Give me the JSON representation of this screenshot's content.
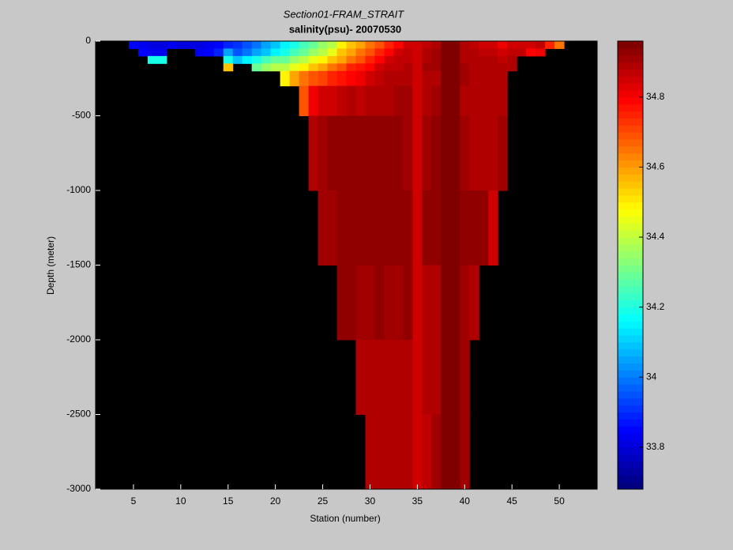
{
  "chart_data": {
    "type": "heatmap",
    "title": "Section01-FRAM_STRAIT",
    "subtitle": "salinity(psu)- 20070530",
    "x_label": "Station (number)",
    "y_label": "Depth (meter)",
    "x": [
      5,
      6,
      7,
      8,
      9,
      10,
      11,
      12,
      13,
      14,
      15,
      16,
      17,
      18,
      19,
      20,
      21,
      22,
      23,
      24,
      25,
      26,
      27,
      28,
      29,
      30,
      31,
      32,
      33,
      34,
      35,
      36,
      37,
      38,
      39,
      40,
      41,
      42,
      43,
      44,
      45,
      46,
      47,
      48,
      49,
      50
    ],
    "y_edges": [
      0,
      -50,
      -100,
      -150,
      -200,
      -300,
      -500,
      -1000,
      -1500,
      -2000,
      -2500,
      -3000
    ],
    "values": [
      [
        33.85,
        null,
        null,
        null,
        null,
        null,
        null,
        null,
        null,
        null,
        null
      ],
      [
        33.83,
        33.85,
        null,
        null,
        null,
        null,
        null,
        null,
        null,
        null,
        null
      ],
      [
        33.82,
        33.84,
        34.2,
        null,
        null,
        null,
        null,
        null,
        null,
        null,
        null
      ],
      [
        33.82,
        33.84,
        34.2,
        null,
        null,
        null,
        null,
        null,
        null,
        null,
        null
      ],
      [
        33.83,
        null,
        null,
        null,
        null,
        null,
        null,
        null,
        null,
        null,
        null
      ],
      [
        33.82,
        null,
        null,
        null,
        null,
        null,
        null,
        null,
        null,
        null,
        null
      ],
      [
        33.81,
        null,
        null,
        null,
        null,
        null,
        null,
        null,
        null,
        null,
        null
      ],
      [
        33.82,
        33.83,
        null,
        null,
        null,
        null,
        null,
        null,
        null,
        null,
        null
      ],
      [
        33.83,
        33.85,
        null,
        null,
        null,
        null,
        null,
        null,
        null,
        null,
        null
      ],
      [
        33.85,
        33.9,
        null,
        null,
        null,
        null,
        null,
        null,
        null,
        null,
        null
      ],
      [
        33.9,
        34.05,
        34.2,
        34.55,
        null,
        null,
        null,
        null,
        null,
        null,
        null
      ],
      [
        33.92,
        33.95,
        34.1,
        null,
        null,
        null,
        null,
        null,
        null,
        null,
        null
      ],
      [
        33.95,
        34.0,
        34.15,
        null,
        null,
        null,
        null,
        null,
        null,
        null,
        null
      ],
      [
        34.0,
        34.05,
        34.2,
        34.3,
        null,
        null,
        null,
        null,
        null,
        null,
        null
      ],
      [
        34.05,
        34.1,
        34.25,
        34.35,
        null,
        null,
        null,
        null,
        null,
        null,
        null
      ],
      [
        34.1,
        34.15,
        34.3,
        34.4,
        null,
        null,
        null,
        null,
        null,
        null,
        null
      ],
      [
        34.15,
        34.2,
        34.3,
        34.4,
        34.5,
        null,
        null,
        null,
        null,
        null,
        null
      ],
      [
        34.2,
        34.25,
        34.35,
        34.45,
        34.6,
        null,
        null,
        null,
        null,
        null,
        null
      ],
      [
        34.25,
        34.3,
        34.4,
        34.5,
        34.65,
        34.7,
        null,
        null,
        null,
        null,
        null
      ],
      [
        34.3,
        34.35,
        34.45,
        34.55,
        34.7,
        34.82,
        34.9,
        null,
        null,
        null,
        null
      ],
      [
        34.35,
        34.4,
        34.5,
        34.6,
        34.72,
        34.85,
        34.92,
        34.92,
        null,
        null,
        null
      ],
      [
        34.4,
        34.45,
        34.55,
        34.65,
        34.75,
        34.85,
        34.93,
        34.92,
        null,
        null,
        null
      ],
      [
        34.5,
        34.55,
        34.6,
        34.7,
        34.78,
        34.88,
        34.93,
        34.93,
        34.93,
        null,
        null
      ],
      [
        34.55,
        34.6,
        34.65,
        34.75,
        34.8,
        34.9,
        34.94,
        34.93,
        34.93,
        null,
        null
      ],
      [
        34.6,
        34.65,
        34.7,
        34.78,
        34.82,
        34.88,
        34.94,
        34.93,
        34.92,
        34.9,
        null
      ],
      [
        34.65,
        34.7,
        34.75,
        34.8,
        34.85,
        34.9,
        34.94,
        34.94,
        34.92,
        34.9,
        34.9
      ],
      [
        34.7,
        34.75,
        34.8,
        34.85,
        34.88,
        34.9,
        34.93,
        34.93,
        34.93,
        34.9,
        34.9
      ],
      [
        34.75,
        34.8,
        34.85,
        34.87,
        34.9,
        34.9,
        34.93,
        34.93,
        34.92,
        34.9,
        34.9
      ],
      [
        34.8,
        34.85,
        34.87,
        34.88,
        34.9,
        34.92,
        34.93,
        34.93,
        34.92,
        34.9,
        34.9
      ],
      [
        34.85,
        34.88,
        34.88,
        34.9,
        34.9,
        34.92,
        34.92,
        34.93,
        34.94,
        34.9,
        34.9
      ],
      [
        34.85,
        34.85,
        34.85,
        34.85,
        34.85,
        34.85,
        34.85,
        34.85,
        34.85,
        34.85,
        34.85
      ],
      [
        34.88,
        34.9,
        34.9,
        34.92,
        34.9,
        34.9,
        34.92,
        34.93,
        34.9,
        34.9,
        34.88
      ],
      [
        34.9,
        34.92,
        34.92,
        34.92,
        34.9,
        34.92,
        34.93,
        34.93,
        34.9,
        34.9,
        34.92
      ],
      [
        34.95,
        34.95,
        34.95,
        34.95,
        34.95,
        34.95,
        34.95,
        34.95,
        34.95,
        34.95,
        34.95
      ],
      [
        34.95,
        34.95,
        34.95,
        34.95,
        34.95,
        34.95,
        34.95,
        34.95,
        34.95,
        34.95,
        34.95
      ],
      [
        34.9,
        34.9,
        34.9,
        34.92,
        34.92,
        34.9,
        34.92,
        34.93,
        34.92,
        34.92,
        34.92
      ],
      [
        34.88,
        34.9,
        34.9,
        34.9,
        34.9,
        34.9,
        34.9,
        34.94,
        34.9,
        null,
        null
      ],
      [
        34.85,
        34.88,
        34.9,
        34.9,
        34.9,
        34.9,
        34.9,
        34.93,
        null,
        null,
        null
      ],
      [
        34.85,
        34.88,
        34.9,
        34.9,
        34.9,
        34.9,
        34.9,
        34.85,
        null,
        null,
        null
      ],
      [
        34.82,
        34.85,
        34.88,
        34.9,
        34.9,
        34.9,
        34.92,
        null,
        null,
        null,
        null
      ],
      [
        34.85,
        34.88,
        34.9,
        34.9,
        null,
        null,
        null,
        null,
        null,
        null,
        null
      ],
      [
        34.85,
        34.88,
        null,
        null,
        null,
        null,
        null,
        null,
        null,
        null,
        null
      ],
      [
        34.85,
        34.8,
        null,
        null,
        null,
        null,
        null,
        null,
        null,
        null,
        null
      ],
      [
        34.88,
        34.82,
        null,
        null,
        null,
        null,
        null,
        null,
        null,
        null,
        null
      ],
      [
        34.75,
        null,
        null,
        null,
        null,
        null,
        null,
        null,
        null,
        null,
        null
      ],
      [
        34.65,
        null,
        null,
        null,
        null,
        null,
        null,
        null,
        null,
        null,
        null
      ]
    ],
    "xlim": [
      1,
      54
    ],
    "xticks": [
      5,
      10,
      15,
      20,
      25,
      30,
      35,
      40,
      45,
      50
    ],
    "ylim": [
      -3000,
      0
    ],
    "yticks": [
      0,
      -500,
      -1000,
      -1500,
      -2000,
      -2500,
      -3000
    ],
    "colormap": "jet",
    "clim": [
      33.68,
      34.96
    ],
    "cticks": [
      33.8,
      34,
      34.2,
      34.4,
      34.6,
      34.8
    ]
  }
}
